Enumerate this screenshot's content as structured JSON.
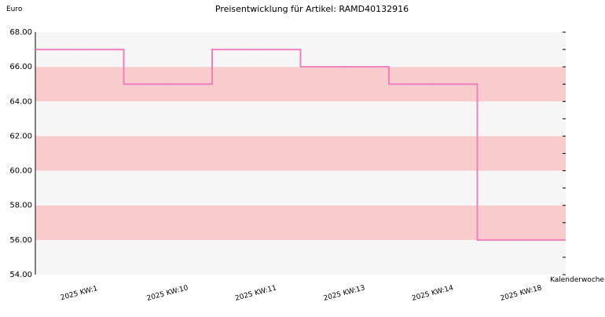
{
  "chart_data": {
    "type": "line",
    "title": "Preisentwicklung für Artikel: RAMD40132916",
    "ylabel": "Euro",
    "xlabel": "Kalenderwoche",
    "categories": [
      "2025 KW:1",
      "2025 KW:10",
      "2025 KW:11",
      "2025 KW:13",
      "2025 KW:14",
      "2025 KW:18"
    ],
    "series": [
      {
        "values": [
          67.0,
          65.0,
          67.0,
          66.0,
          65.0,
          56.0
        ]
      }
    ],
    "ylim": [
      54,
      68
    ],
    "yticks": [
      "54.00",
      "56.00",
      "58.00",
      "60.00",
      "62.00",
      "64.00",
      "66.00",
      "68.00"
    ],
    "step": true,
    "colors": {
      "line": "#f080c0",
      "band_light": "#f6f6f6",
      "band_pink": "#f8cccc",
      "axis": "#000000"
    }
  }
}
